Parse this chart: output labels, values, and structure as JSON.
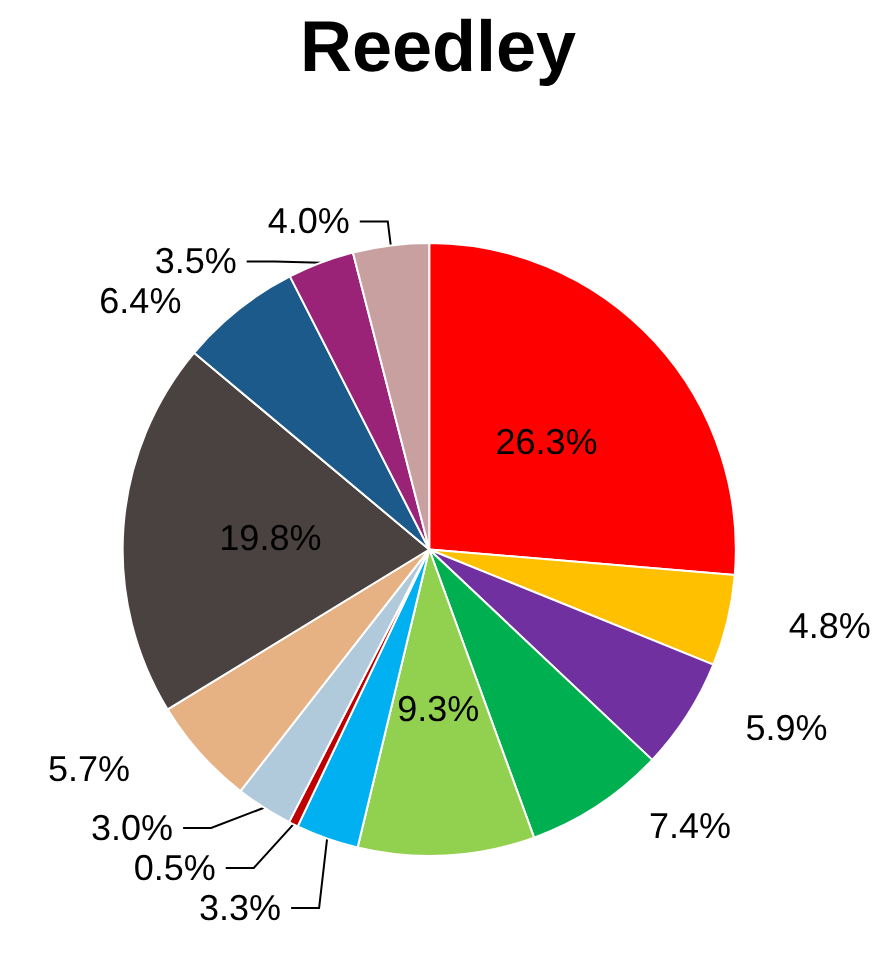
{
  "chart_data": {
    "type": "pie",
    "title": "Reedley",
    "categories": [
      null,
      null,
      null,
      null,
      null,
      null,
      null,
      null,
      null,
      null,
      null,
      null,
      null
    ],
    "values": [
      26.3,
      4.8,
      5.9,
      7.4,
      9.3,
      3.3,
      0.5,
      3.0,
      5.7,
      19.8,
      6.4,
      3.5,
      4.0
    ],
    "value_labels": [
      "26.3%",
      "4.8%",
      "5.9%",
      "7.4%",
      "9.3%",
      "3.3%",
      "0.5%",
      "3.0%",
      "5.7%",
      "19.8%",
      "6.4%",
      "3.5%",
      "4.0%"
    ],
    "colors": [
      "#ff0000",
      "#ffc000",
      "#7030a0",
      "#00b050",
      "#92d050",
      "#00b0f0",
      "#c00000",
      "#b0cadc",
      "#e6b183",
      "#494240",
      "#1b5a8a",
      "#9b2377",
      "#c9a0a0"
    ]
  }
}
